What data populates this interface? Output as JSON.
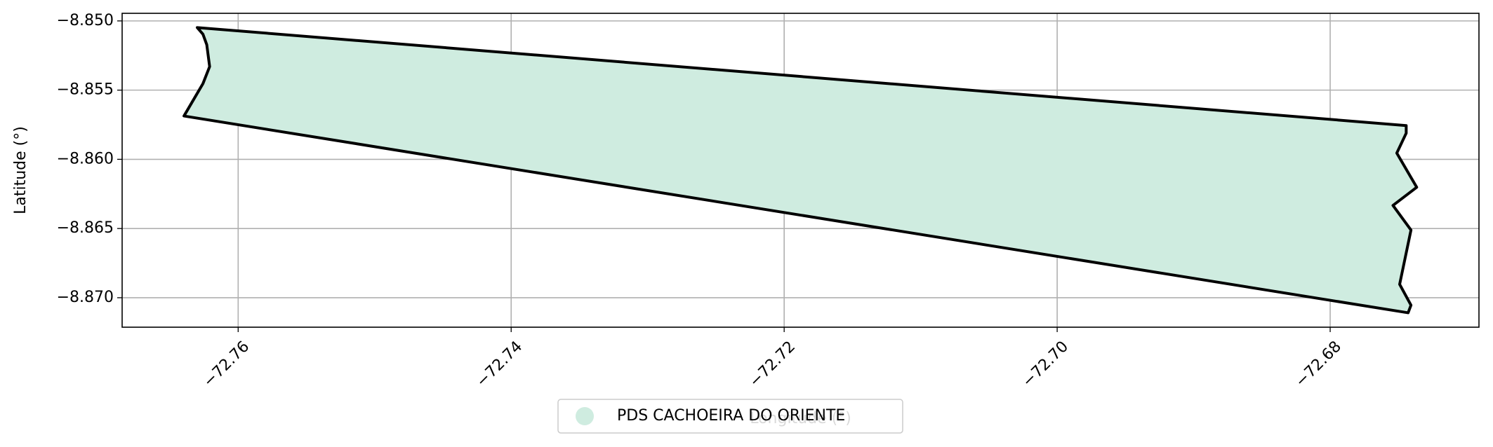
{
  "chart_data": {
    "type": "polygon",
    "xlabel": "Longitude (°)",
    "ylabel": "Latitude (°)",
    "xlim": [
      -72.7685,
      -72.6691
    ],
    "ylim": [
      -8.87213,
      -8.84945
    ],
    "xticks": [
      {
        "value": -72.76,
        "label": "−72.76"
      },
      {
        "value": -72.74,
        "label": "−72.74"
      },
      {
        "value": -72.72,
        "label": "−72.72"
      },
      {
        "value": -72.7,
        "label": "−72.70"
      },
      {
        "value": -72.68,
        "label": "−72.68"
      }
    ],
    "yticks": [
      {
        "value": -8.85,
        "label": "−8.850"
      },
      {
        "value": -8.855,
        "label": "−8.855"
      },
      {
        "value": -8.86,
        "label": "−8.860"
      },
      {
        "value": -8.865,
        "label": "−8.865"
      },
      {
        "value": -8.87,
        "label": "−8.870"
      }
    ],
    "grid": true,
    "legend": "lower center",
    "series": [
      {
        "name": "PDS CACHOEIRA DO ORIENTE",
        "color": "#cfece0",
        "edgecolor": "#000000",
        "x": [
          -72.763,
          -72.76258,
          -72.7623,
          -72.76209,
          -72.76258,
          -72.76397,
          -72.67429,
          -72.67408,
          -72.67491,
          -72.67408,
          -72.6754,
          -72.67366,
          -72.67512,
          -72.67443,
          -72.67443
        ],
        "y": [
          -8.85048,
          -8.85096,
          -8.85172,
          -8.8533,
          -8.85453,
          -8.85687,
          -8.87109,
          -8.87054,
          -8.86903,
          -8.86511,
          -8.86333,
          -8.86202,
          -8.85955,
          -8.85811,
          -8.85756
        ]
      }
    ]
  }
}
